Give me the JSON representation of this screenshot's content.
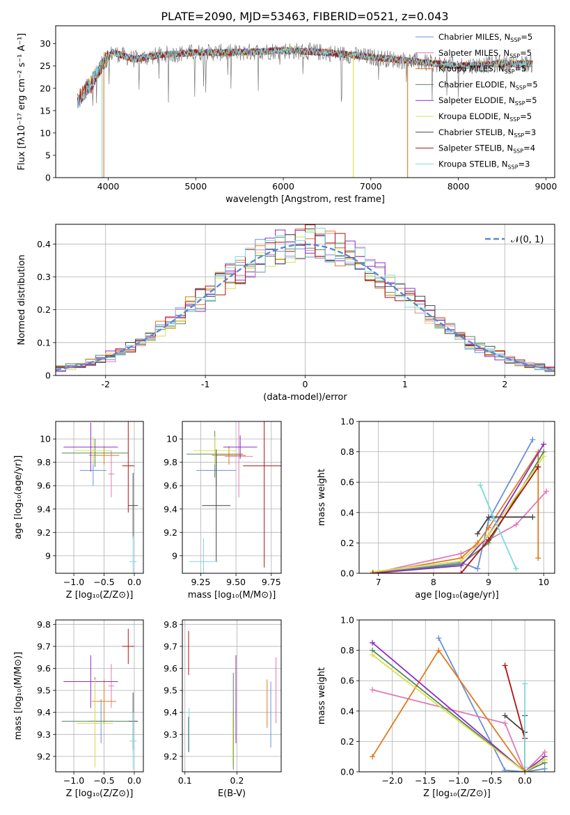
{
  "title": "PLATE=2090, MJD=53463, FIBERID=0521, z=0.043",
  "colors": {
    "chabrier_miles": "#6a8fd8",
    "salpeter_miles": "#e07ab8",
    "kroupa_miles": "#e07a1a",
    "chabrier_elodie": "#55885a",
    "salpeter_elodie": "#8a2dc8",
    "kroupa_elodie": "#d8e048",
    "chabrier_stelib": "#444444",
    "salpeter_stelib": "#b01010",
    "kroupa_stelib": "#7ed8e0",
    "normal_curve": "#5b86d6",
    "grid": "#b0b0b0"
  },
  "legend_top": [
    {
      "base": "Chabrier MILES, N",
      "sub": "SSP",
      "tail": "=5",
      "color_key": "chabrier_miles"
    },
    {
      "base": "Salpeter MILES, N",
      "sub": "SSP",
      "tail": "=5",
      "color_key": "salpeter_miles"
    },
    {
      "base": "Kroupa MILES, N",
      "sub": "SSP",
      "tail": "=5",
      "color_key": "kroupa_miles"
    },
    {
      "base": "Chabrier ELODIE, N",
      "sub": "SSP",
      "tail": "=5",
      "color_key": "chabrier_elodie"
    },
    {
      "base": "Salpeter ELODIE, N",
      "sub": "SSP",
      "tail": "=5",
      "color_key": "salpeter_elodie"
    },
    {
      "base": "Kroupa ELODIE, N",
      "sub": "SSP",
      "tail": "=5",
      "color_key": "kroupa_elodie"
    },
    {
      "base": "Chabrier STELIB, N",
      "sub": "SSP",
      "tail": "=3",
      "color_key": "chabrier_stelib"
    },
    {
      "base": "Salpeter STELIB, N",
      "sub": "SSP",
      "tail": "=4",
      "color_key": "salpeter_stelib"
    },
    {
      "base": "Kroupa STELIB, N",
      "sub": "SSP",
      "tail": "=3",
      "color_key": "kroupa_stelib"
    }
  ],
  "legend_hist": {
    "label": "𝒩(0, 1)"
  },
  "chart_data": [
    {
      "id": "spectrum",
      "type": "line",
      "xlabel": "wavelength [Angstrom, rest frame]",
      "ylabel": "Flux [fλ10⁻¹⁷ erg cm⁻² s⁻¹ A⁻¹]",
      "xlim": [
        3400,
        9100
      ],
      "ylim": [
        0,
        34
      ],
      "xticks": [
        4000,
        5000,
        6000,
        7000,
        8000,
        9000
      ],
      "yticks": [
        0,
        5,
        10,
        15,
        20,
        25,
        30
      ],
      "data_x_range": [
        3650,
        8850
      ],
      "continuum": [
        [
          3650,
          17
        ],
        [
          3800,
          21
        ],
        [
          3950,
          26
        ],
        [
          4050,
          28
        ],
        [
          4300,
          26.5
        ],
        [
          4600,
          27.5
        ],
        [
          5000,
          28
        ],
        [
          5500,
          28
        ],
        [
          6000,
          28.5
        ],
        [
          6500,
          28
        ],
        [
          7000,
          27
        ],
        [
          7500,
          26
        ],
        [
          8000,
          25
        ],
        [
          8500,
          25.5
        ],
        [
          8850,
          25.5
        ]
      ],
      "model_dropouts": [
        {
          "x": 3930,
          "y_min": 0,
          "color_key": "kroupa_stelib"
        },
        {
          "x": 3950,
          "y_min": 0,
          "color_key": "kroupa_miles"
        },
        {
          "x": 6800,
          "y_min": 0,
          "color_key": "kroupa_elodie"
        },
        {
          "x": 7420,
          "y_min": 0,
          "color_key": "kroupa_miles"
        }
      ],
      "grid": false
    },
    {
      "id": "residual_hist",
      "type": "histogram",
      "xlabel": "(data-model)/error",
      "ylabel": "Normed distribution",
      "xlim": [
        -2.5,
        2.5
      ],
      "ylim": [
        0,
        0.46
      ],
      "xticks": [
        -2,
        -1,
        0,
        1,
        2
      ],
      "yticks": [
        0,
        0.1,
        0.2,
        0.3,
        0.4
      ],
      "bin_width": 0.1,
      "series_color_keys": [
        "chabrier_miles",
        "salpeter_miles",
        "kroupa_miles",
        "chabrier_elodie",
        "salpeter_elodie",
        "kroupa_elodie",
        "chabrier_stelib",
        "salpeter_stelib",
        "kroupa_stelib"
      ],
      "overlay": {
        "type": "normal",
        "mean": 0,
        "sigma": 1,
        "style": "dashed"
      },
      "grid": true
    },
    {
      "id": "age_vs_Z",
      "type": "scatter",
      "xlabel": "Z [log₁₀(Z/Z⊙)]",
      "ylabel": "age  [log₁₀(age/yr)]",
      "xlim": [
        -1.3,
        0.15
      ],
      "ylim": [
        8.85,
        10.15
      ],
      "xticks": [
        -1.0,
        -0.5,
        0.0
      ],
      "xticklabels": [
        "−1.0",
        "−0.5",
        "0.0"
      ],
      "yticks": [
        9.0,
        9.2,
        9.4,
        9.6,
        9.8,
        10.0
      ],
      "points": [
        {
          "x": -0.68,
          "y": 9.73,
          "xerr": 0.22,
          "yerr": 0.13,
          "color_key": "chabrier_miles"
        },
        {
          "x": -0.38,
          "y": 9.7,
          "xerr": 0.05,
          "yerr": 0.2,
          "color_key": "salpeter_miles"
        },
        {
          "x": -0.5,
          "y": 9.86,
          "xerr": 0.25,
          "yerr": 0.08,
          "color_key": "kroupa_miles"
        },
        {
          "x": -0.65,
          "y": 9.88,
          "xerr": 0.55,
          "yerr": 0.12,
          "color_key": "chabrier_elodie"
        },
        {
          "x": -0.72,
          "y": 9.93,
          "xerr": 0.45,
          "yerr": 0.21,
          "color_key": "salpeter_elodie"
        },
        {
          "x": -0.68,
          "y": 9.9,
          "xerr": 0.3,
          "yerr": 0.12,
          "color_key": "kroupa_elodie"
        },
        {
          "x": -0.02,
          "y": 9.43,
          "xerr": 0.08,
          "yerr": 0.28,
          "color_key": "chabrier_stelib"
        },
        {
          "x": -0.1,
          "y": 9.77,
          "xerr": 0.1,
          "yerr": 0.4,
          "color_key": "salpeter_stelib"
        },
        {
          "x": -0.02,
          "y": 8.95,
          "xerr": 0.06,
          "yerr": 0.22,
          "color_key": "kroupa_stelib"
        }
      ],
      "grid": true
    },
    {
      "id": "age_vs_mass",
      "type": "scatter",
      "xlabel": "mass [log₁₀(M/M⊙)]",
      "ylabel": "",
      "xlim": [
        9.12,
        9.82
      ],
      "ylim": [
        8.85,
        10.15
      ],
      "xticks": [
        9.25,
        9.5,
        9.75
      ],
      "xticklabels": [
        "9.25",
        "9.50",
        "9.75"
      ],
      "yticks": [
        9.0,
        9.2,
        9.4,
        9.6,
        9.8,
        10.0
      ],
      "points": [
        {
          "x": 9.36,
          "y": 9.73,
          "xerr": 0.14,
          "yerr": 0.13,
          "color_key": "chabrier_miles"
        },
        {
          "x": 9.52,
          "y": 9.85,
          "xerr": 0.1,
          "yerr": 0.35,
          "color_key": "salpeter_miles"
        },
        {
          "x": 9.45,
          "y": 9.86,
          "xerr": 0.12,
          "yerr": 0.08,
          "color_key": "kroupa_miles"
        },
        {
          "x": 9.35,
          "y": 9.87,
          "xerr": 0.2,
          "yerr": 0.2,
          "color_key": "chabrier_elodie"
        },
        {
          "x": 9.53,
          "y": 9.93,
          "xerr": 0.12,
          "yerr": 0.1,
          "color_key": "salpeter_elodie"
        },
        {
          "x": 9.35,
          "y": 9.9,
          "xerr": 0.15,
          "yerr": 0.12,
          "color_key": "kroupa_elodie"
        },
        {
          "x": 9.36,
          "y": 9.43,
          "xerr": 0.1,
          "yerr": 0.48,
          "color_key": "chabrier_stelib"
        },
        {
          "x": 9.7,
          "y": 9.77,
          "xerr": 0.15,
          "yerr": 0.87,
          "color_key": "salpeter_stelib"
        },
        {
          "x": 9.27,
          "y": 8.95,
          "xerr": 0.1,
          "yerr": 0.2,
          "color_key": "kroupa_stelib"
        }
      ],
      "grid": true
    },
    {
      "id": "massweight_vs_age",
      "type": "line",
      "xlabel": "age  [log₁₀(age/yr)]",
      "ylabel": "mass weight",
      "xlim": [
        6.65,
        10.2
      ],
      "ylim": [
        0,
        1.0
      ],
      "xticks": [
        7,
        8,
        9,
        10
      ],
      "yticks": [
        0,
        0.2,
        0.4,
        0.6,
        0.8,
        1.0
      ],
      "yticklabels": [
        "0.0",
        "0.2",
        "0.4",
        "0.6",
        "0.8",
        "1.0"
      ],
      "series": [
        {
          "color_key": "chabrier_miles",
          "x": [
            6.9,
            8.5,
            8.8,
            9.0,
            9.8
          ],
          "y": [
            0.0,
            0.07,
            0.03,
            0.35,
            0.88
          ]
        },
        {
          "color_key": "salpeter_miles",
          "x": [
            6.9,
            8.5,
            9.0,
            9.5,
            10.05
          ],
          "y": [
            0.0,
            0.13,
            0.22,
            0.32,
            0.54
          ]
        },
        {
          "color_key": "kroupa_miles",
          "x": [
            6.9,
            8.5,
            8.8,
            9.0,
            9.9,
            9.9
          ],
          "y": [
            0.0,
            0.1,
            0.2,
            0.3,
            0.8,
            0.1
          ]
        },
        {
          "color_key": "chabrier_elodie",
          "x": [
            6.9,
            8.5,
            9.0,
            10.0
          ],
          "y": [
            0.0,
            0.06,
            0.2,
            0.8
          ]
        },
        {
          "color_key": "salpeter_elodie",
          "x": [
            6.9,
            8.5,
            9.0,
            10.0
          ],
          "y": [
            0.0,
            0.05,
            0.25,
            0.85
          ]
        },
        {
          "color_key": "kroupa_elodie",
          "x": [
            6.9,
            8.5,
            9.0,
            10.0
          ],
          "y": [
            0.01,
            0.08,
            0.25,
            0.77
          ]
        },
        {
          "color_key": "chabrier_stelib",
          "x": [
            8.8,
            9.0,
            9.8
          ],
          "y": [
            0.26,
            0.37,
            0.37
          ]
        },
        {
          "color_key": "salpeter_stelib",
          "x": [
            6.9,
            8.5,
            9.0,
            9.9,
            9.9
          ],
          "y": [
            0.0,
            0.0,
            0.22,
            0.7,
            0.7
          ]
        },
        {
          "color_key": "kroupa_stelib",
          "x": [
            8.85,
            9.1,
            9.5
          ],
          "y": [
            0.58,
            0.36,
            0.03
          ]
        }
      ],
      "grid": true
    },
    {
      "id": "mass_vs_Z",
      "type": "scatter",
      "xlabel": "Z [log₁₀(Z/Z⊙)]",
      "ylabel": "mass [log₁₀(M/M⊙)]",
      "xlim": [
        -1.3,
        0.15
      ],
      "ylim": [
        9.13,
        9.82
      ],
      "xticks": [
        -1.0,
        -0.5,
        0.0
      ],
      "xticklabels": [
        "−1.0",
        "−0.5",
        "0.0"
      ],
      "yticks": [
        9.2,
        9.3,
        9.4,
        9.5,
        9.6,
        9.7,
        9.8
      ],
      "points": [
        {
          "x": -0.55,
          "y": 9.36,
          "xerr": 0.2,
          "yerr": 0.1,
          "color_key": "chabrier_miles"
        },
        {
          "x": -0.38,
          "y": 9.52,
          "xerr": 0.05,
          "yerr": 0.1,
          "color_key": "salpeter_miles"
        },
        {
          "x": -0.5,
          "y": 9.45,
          "xerr": 0.2,
          "yerr": 0.1,
          "color_key": "kroupa_miles"
        },
        {
          "x": -0.65,
          "y": 9.36,
          "xerr": 0.55,
          "yerr": 0.2,
          "color_key": "chabrier_elodie"
        },
        {
          "x": -0.72,
          "y": 9.54,
          "xerr": 0.45,
          "yerr": 0.12,
          "color_key": "salpeter_elodie"
        },
        {
          "x": -0.65,
          "y": 9.35,
          "xerr": 0.3,
          "yerr": 0.2,
          "color_key": "kroupa_elodie"
        },
        {
          "x": -0.02,
          "y": 9.36,
          "xerr": 0.08,
          "yerr": 0.13,
          "color_key": "chabrier_stelib"
        },
        {
          "x": -0.1,
          "y": 9.7,
          "xerr": 0.1,
          "yerr": 0.08,
          "color_key": "salpeter_stelib"
        },
        {
          "x": -0.02,
          "y": 9.27,
          "xerr": 0.06,
          "yerr": 0.13,
          "color_key": "kroupa_stelib"
        }
      ],
      "grid": true
    },
    {
      "id": "mass_vs_EBV",
      "type": "scatter",
      "xlabel": "E(B-V)",
      "ylabel": "",
      "xlim": [
        0.095,
        0.285
      ],
      "ylim": [
        9.13,
        9.82
      ],
      "xticks": [
        0.1,
        0.2
      ],
      "xticklabels": [
        "0.1",
        "0.2"
      ],
      "yticks": [
        9.2,
        9.3,
        9.4,
        9.5,
        9.6,
        9.7,
        9.8
      ],
      "points": [
        {
          "x": 0.265,
          "y": 9.39,
          "xerr": 0,
          "yerr": 0.15,
          "color_key": "chabrier_miles"
        },
        {
          "x": 0.275,
          "y": 9.5,
          "xerr": 0,
          "yerr": 0.15,
          "color_key": "salpeter_miles"
        },
        {
          "x": 0.258,
          "y": 9.44,
          "xerr": 0,
          "yerr": 0.11,
          "color_key": "kroupa_miles"
        },
        {
          "x": 0.193,
          "y": 9.36,
          "xerr": 0,
          "yerr": 0.22,
          "color_key": "chabrier_elodie"
        },
        {
          "x": 0.198,
          "y": 9.46,
          "xerr": 0,
          "yerr": 0.2,
          "color_key": "salpeter_elodie"
        },
        {
          "x": 0.192,
          "y": 9.28,
          "xerr": 0,
          "yerr": 0.12,
          "color_key": "kroupa_elodie"
        },
        {
          "x": 0.107,
          "y": 9.3,
          "xerr": 0,
          "yerr": 0.08,
          "color_key": "chabrier_stelib"
        },
        {
          "x": 0.107,
          "y": 9.67,
          "xerr": 0,
          "yerr": 0.1,
          "color_key": "salpeter_stelib"
        },
        {
          "x": 0.108,
          "y": 9.32,
          "xerr": 0,
          "yerr": 0.1,
          "color_key": "kroupa_stelib"
        }
      ],
      "grid": true
    },
    {
      "id": "massweight_vs_Z",
      "type": "line",
      "xlabel": "Z [log₁₀(Z/Z⊙)]",
      "ylabel": "mass weight",
      "xlim": [
        -2.5,
        0.45
      ],
      "ylim": [
        0,
        1.0
      ],
      "xticks": [
        -2.0,
        -1.5,
        -1.0,
        -0.5,
        0.0
      ],
      "xticklabels": [
        "−2.0",
        "−1.5",
        "−1.0",
        "−0.5",
        "0.0"
      ],
      "yticks": [
        0,
        0.2,
        0.4,
        0.6,
        0.8,
        1.0
      ],
      "yticklabels": [
        "0.0",
        "0.2",
        "0.4",
        "0.6",
        "0.8",
        "1.0"
      ],
      "series": [
        {
          "color_key": "chabrier_miles",
          "x": [
            -1.3,
            -0.3,
            0.0,
            0.3
          ],
          "y": [
            0.88,
            0.01,
            0.0,
            0.02
          ]
        },
        {
          "color_key": "salpeter_miles",
          "x": [
            -2.3,
            -0.3,
            0.0,
            0.3
          ],
          "y": [
            0.54,
            0.32,
            0.0,
            0.13
          ]
        },
        {
          "color_key": "kroupa_miles",
          "x": [
            -2.3,
            -1.3,
            0.0,
            0.3
          ],
          "y": [
            0.1,
            0.8,
            0.0,
            0.08
          ]
        },
        {
          "color_key": "chabrier_elodie",
          "x": [
            -2.3,
            0.0,
            0.3
          ],
          "y": [
            0.8,
            0.0,
            0.06
          ]
        },
        {
          "color_key": "salpeter_elodie",
          "x": [
            -2.3,
            0.0,
            0.3
          ],
          "y": [
            0.85,
            0.0,
            0.1
          ]
        },
        {
          "color_key": "kroupa_elodie",
          "x": [
            -2.3,
            0.0,
            0.3
          ],
          "y": [
            0.77,
            0.0,
            0.08
          ]
        },
        {
          "color_key": "chabrier_stelib",
          "x": [
            -0.3,
            0.0,
            0.0
          ],
          "y": [
            0.37,
            0.26,
            0.37
          ]
        },
        {
          "color_key": "salpeter_stelib",
          "x": [
            -0.3,
            0.0,
            0.0
          ],
          "y": [
            0.7,
            0.22,
            0.0
          ]
        },
        {
          "color_key": "kroupa_stelib",
          "x": [
            0.0,
            0.0
          ],
          "y": [
            0.58,
            0.03
          ]
        }
      ],
      "grid": true
    }
  ]
}
